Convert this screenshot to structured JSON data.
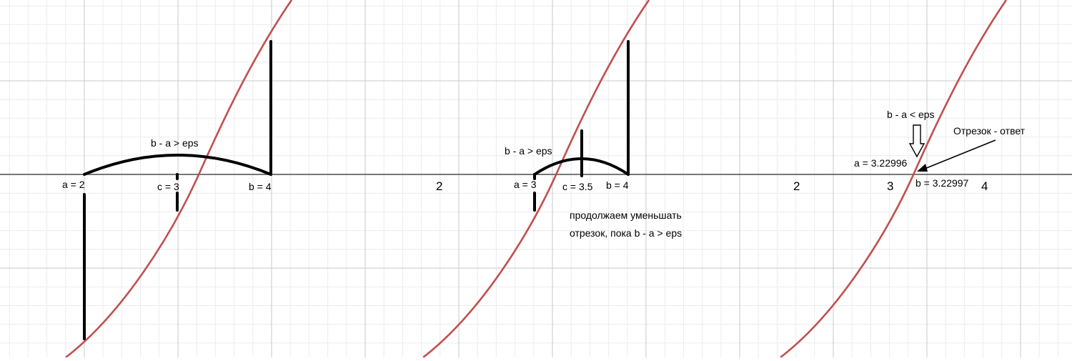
{
  "colors": {
    "curve": "#c0504d",
    "ink": "#000000",
    "grid": "#c8c8c8",
    "grid_minor": "#ececec",
    "axis": "#4a4a4a"
  },
  "panel1": {
    "label_a": "a = 2",
    "label_c": "c = 3",
    "label_b": "b = 4",
    "label_cmp": "b - a > eps"
  },
  "panel2": {
    "tick_2": "2",
    "label_a": "a = 3",
    "label_c": "c = 3.5",
    "label_b": "b = 4",
    "label_cmp": "b - a > eps",
    "note_line1": "продолжаем уменьшать",
    "note_line2": "отрезок, пока b - a > eps"
  },
  "panel3": {
    "tick_2": "2",
    "tick_3": "3",
    "tick_4": "4",
    "label_cmp": "b - a < eps",
    "label_answer": "Отрезок - ответ",
    "label_a": "a = 3.22996",
    "label_b": "b = 3.22997"
  }
}
